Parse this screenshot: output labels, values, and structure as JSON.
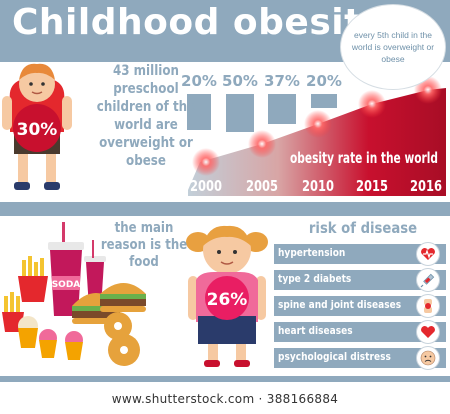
{
  "header": {
    "title": "Childhood obesity",
    "bubble_text": "every 5th child in the world is overweight or obese"
  },
  "top_section": {
    "stat_text": "43 million preschool children of the world are overweight or obese",
    "boy_badge": "30%"
  },
  "chart_data": {
    "type": "area",
    "title": "obesity rate in the world",
    "categories": [
      "2000",
      "2005",
      "2010",
      "2015",
      "2016"
    ],
    "change_labels": [
      "20%",
      "50%",
      "37%",
      "20%"
    ],
    "change_values": [
      20,
      50,
      37,
      20
    ]
  },
  "bottom_section": {
    "reason_text": "the main reason is the food",
    "girl_badge": "26%",
    "soda_label": "SODA",
    "risk_title": "risk of disease",
    "risks": [
      {
        "label": "hypertension",
        "icon": "heart-monitor-icon"
      },
      {
        "label": "type 2 diabets",
        "icon": "syringe-icon"
      },
      {
        "label": "spine and joint diseases",
        "icon": "joint-icon"
      },
      {
        "label": "heart diseases",
        "icon": "heart-icon"
      },
      {
        "label": "psychological distress",
        "icon": "sad-face-icon"
      }
    ]
  },
  "footer": {
    "watermark": "www.shutterstock.com · 388166884"
  },
  "colors": {
    "band": "#8fa9bd",
    "accent_red": "#c8102e",
    "badge_pink": "#f06a9a",
    "text_blue": "#8fa9bd"
  }
}
